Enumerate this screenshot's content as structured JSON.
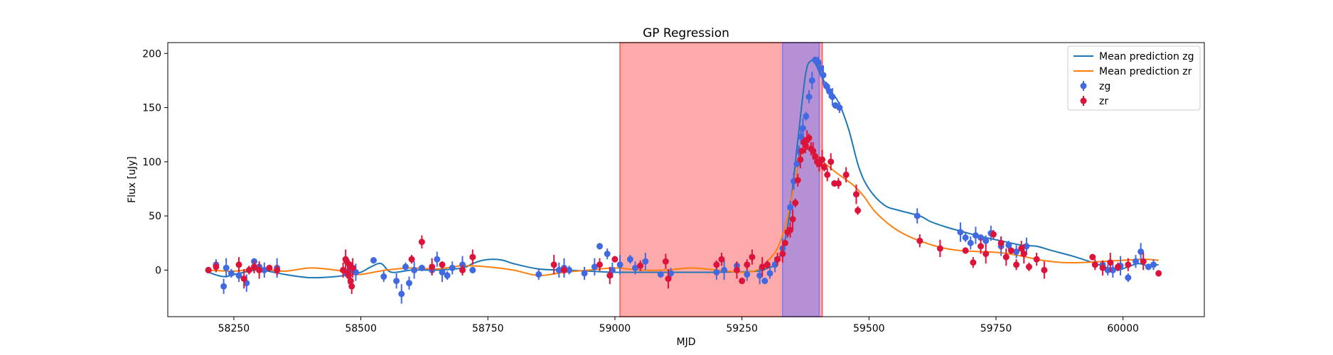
{
  "chart_data": {
    "type": "scatter",
    "title": "GP Regression",
    "xlabel": "MJD",
    "ylabel": "Flux [uJy]",
    "xlim": [
      58120,
      60160
    ],
    "ylim": [
      -43,
      210
    ],
    "xticks": [
      58250,
      58500,
      58750,
      59000,
      59250,
      59500,
      59750,
      60000
    ],
    "yticks": [
      0,
      50,
      100,
      150,
      200
    ],
    "grid": false,
    "legend_position": "top-right",
    "legend": [
      "Mean prediction zg",
      "Mean prediction zr",
      "zg",
      "zr"
    ],
    "colors": {
      "zg_line": "#1f77b4",
      "zr_line": "#ff7f0e",
      "zg_points": "#4169e1",
      "zr_points": "#dc143c",
      "span_red": "#ff5555",
      "span_blue": "#7a7af5"
    },
    "spans": [
      {
        "x0": 59010,
        "x1": 59408,
        "color": "red"
      },
      {
        "x0": 59330,
        "x1": 59402,
        "color": "blue"
      }
    ],
    "series": [
      {
        "name": "Mean prediction zg",
        "kind": "line",
        "x": [
          58200,
          58230,
          58260,
          58300,
          58350,
          58400,
          58450,
          58480,
          58500,
          58520,
          58540,
          58560,
          58600,
          58650,
          58700,
          58720,
          58740,
          58760,
          58780,
          58800,
          58850,
          58900,
          58950,
          59000,
          59100,
          59200,
          59280,
          59300,
          59320,
          59340,
          59360,
          59375,
          59385,
          59395,
          59405,
          59420,
          59440,
          59460,
          59480,
          59500,
          59530,
          59560,
          59600,
          59620,
          59650,
          59680,
          59720,
          59760,
          59800,
          59830,
          59860,
          59900,
          59940,
          59970,
          59990,
          60010,
          60030,
          60050,
          60070
        ],
        "y": [
          -2,
          -6,
          -3,
          0,
          -4,
          -7,
          -6,
          -4,
          -2,
          3,
          6,
          -2,
          0,
          0,
          2,
          6,
          9,
          10,
          9,
          6,
          1,
          0,
          -1,
          -2,
          -2,
          -2,
          -1,
          2,
          8,
          40,
          120,
          180,
          193,
          190,
          180,
          168,
          155,
          130,
          95,
          75,
          60,
          55,
          50,
          45,
          40,
          36,
          31,
          27,
          23,
          22,
          18,
          13,
          7,
          2,
          0,
          3,
          6,
          4,
          5
        ]
      },
      {
        "name": "Mean prediction zr",
        "kind": "line",
        "x": [
          58200,
          58250,
          58300,
          58350,
          58400,
          58450,
          58480,
          58500,
          58550,
          58600,
          58650,
          58700,
          58750,
          58800,
          58850,
          58900,
          58950,
          59000,
          59050,
          59100,
          59150,
          59200,
          59250,
          59280,
          59300,
          59320,
          59335,
          59345,
          59360,
          59375,
          59390,
          59410,
          59430,
          59450,
          59470,
          59490,
          59510,
          59540,
          59570,
          59600,
          59640,
          59680,
          59720,
          59760,
          59800,
          59840,
          59880,
          59920,
          59960,
          60000,
          60040,
          60070
        ],
        "y": [
          0,
          -1,
          1,
          -1,
          2,
          0,
          -3,
          -4,
          0,
          2,
          1,
          4,
          3,
          0,
          -5,
          -2,
          0,
          2,
          0,
          0,
          2,
          0,
          -2,
          0,
          8,
          20,
          40,
          60,
          95,
          115,
          110,
          100,
          92,
          85,
          78,
          68,
          55,
          42,
          33,
          27,
          21,
          18,
          17,
          16,
          13,
          9,
          7,
          7,
          8,
          9,
          10,
          9
        ]
      },
      {
        "name": "zg",
        "kind": "errorbar",
        "x": [
          58200,
          58215,
          58230,
          58235,
          58245,
          58260,
          58275,
          58290,
          58300,
          58310,
          58335,
          58470,
          58480,
          58490,
          58525,
          58545,
          58570,
          58580,
          58588,
          58595,
          58605,
          58620,
          58640,
          58650,
          58660,
          58670,
          58680,
          58700,
          58720,
          58850,
          58890,
          58900,
          58910,
          58940,
          58960,
          58970,
          58985,
          58995,
          59010,
          59030,
          59040,
          59060,
          59090,
          59110,
          59200,
          59215,
          59240,
          59260,
          59285,
          59295,
          59305,
          59315,
          59330,
          59340,
          59345,
          59352,
          59358,
          59362,
          59366,
          59370,
          59376,
          59382,
          59388,
          59394,
          59400,
          59405,
          59410,
          59416,
          59422,
          59428,
          59434,
          59442,
          59595,
          59680,
          59690,
          59700,
          59710,
          59720,
          59730,
          59740,
          59760,
          59775,
          59790,
          59810,
          59960,
          59970,
          59980,
          59995,
          60010,
          60025,
          60035,
          60050,
          60060
        ],
        "y": [
          0,
          5,
          -15,
          2,
          -3,
          -5,
          -12,
          8,
          3,
          0,
          2,
          -2,
          0,
          -2,
          9,
          -6,
          -10,
          -22,
          3,
          -12,
          0,
          2,
          0,
          10,
          -2,
          -5,
          2,
          5,
          0,
          -4,
          0,
          2,
          0,
          -3,
          3,
          22,
          15,
          0,
          5,
          10,
          2,
          8,
          -4,
          -3,
          -2,
          0,
          4,
          -4,
          -5,
          -10,
          -3,
          5,
          20,
          35,
          58,
          82,
          98,
          110,
          123,
          131,
          142,
          160,
          175,
          194,
          192,
          186,
          180,
          170,
          165,
          160,
          152,
          150,
          50,
          35,
          30,
          25,
          32,
          30,
          27,
          34,
          22,
          23,
          17,
          22,
          5,
          0,
          0,
          4,
          -7,
          8,
          17,
          3,
          5
        ]
      },
      {
        "name": "zr",
        "kind": "errorbar",
        "x": [
          58200,
          58215,
          58260,
          58270,
          58280,
          58290,
          58300,
          58320,
          58335,
          58465,
          58470,
          58472,
          58474,
          58476,
          58478,
          58480,
          58482,
          58484,
          58600,
          58620,
          58640,
          58660,
          58700,
          58720,
          58880,
          58900,
          58970,
          58990,
          59000,
          59050,
          59100,
          59105,
          59200,
          59210,
          59240,
          59250,
          59260,
          59270,
          59290,
          59300,
          59320,
          59330,
          59335,
          59340,
          59345,
          59350,
          59355,
          59360,
          59365,
          59368,
          59372,
          59375,
          59378,
          59382,
          59386,
          59390,
          59394,
          59398,
          59402,
          59408,
          59412,
          59418,
          59425,
          59432,
          59440,
          59455,
          59475,
          59478,
          59600,
          59640,
          59690,
          59705,
          59720,
          59730,
          59745,
          59760,
          59770,
          59780,
          59790,
          59800,
          59805,
          59815,
          59830,
          59845,
          59940,
          59945,
          59960,
          59975,
          59990,
          60010,
          60040,
          60070
        ],
        "y": [
          0,
          3,
          5,
          -8,
          0,
          3,
          0,
          2,
          0,
          0,
          10,
          8,
          -2,
          -5,
          5,
          -10,
          -15,
          2,
          10,
          26,
          3,
          5,
          0,
          12,
          5,
          0,
          5,
          -5,
          10,
          4,
          8,
          -8,
          5,
          10,
          0,
          -10,
          5,
          12,
          3,
          5,
          10,
          15,
          25,
          35,
          37,
          47,
          62,
          83,
          102,
          110,
          118,
          115,
          120,
          122,
          112,
          110,
          105,
          100,
          98,
          102,
          95,
          88,
          100,
          80,
          80,
          88,
          70,
          55,
          27,
          20,
          18,
          7,
          22,
          15,
          33,
          25,
          12,
          18,
          5,
          20,
          15,
          3,
          10,
          0,
          12,
          5,
          2,
          7,
          3,
          5,
          8,
          -3
        ]
      }
    ]
  }
}
